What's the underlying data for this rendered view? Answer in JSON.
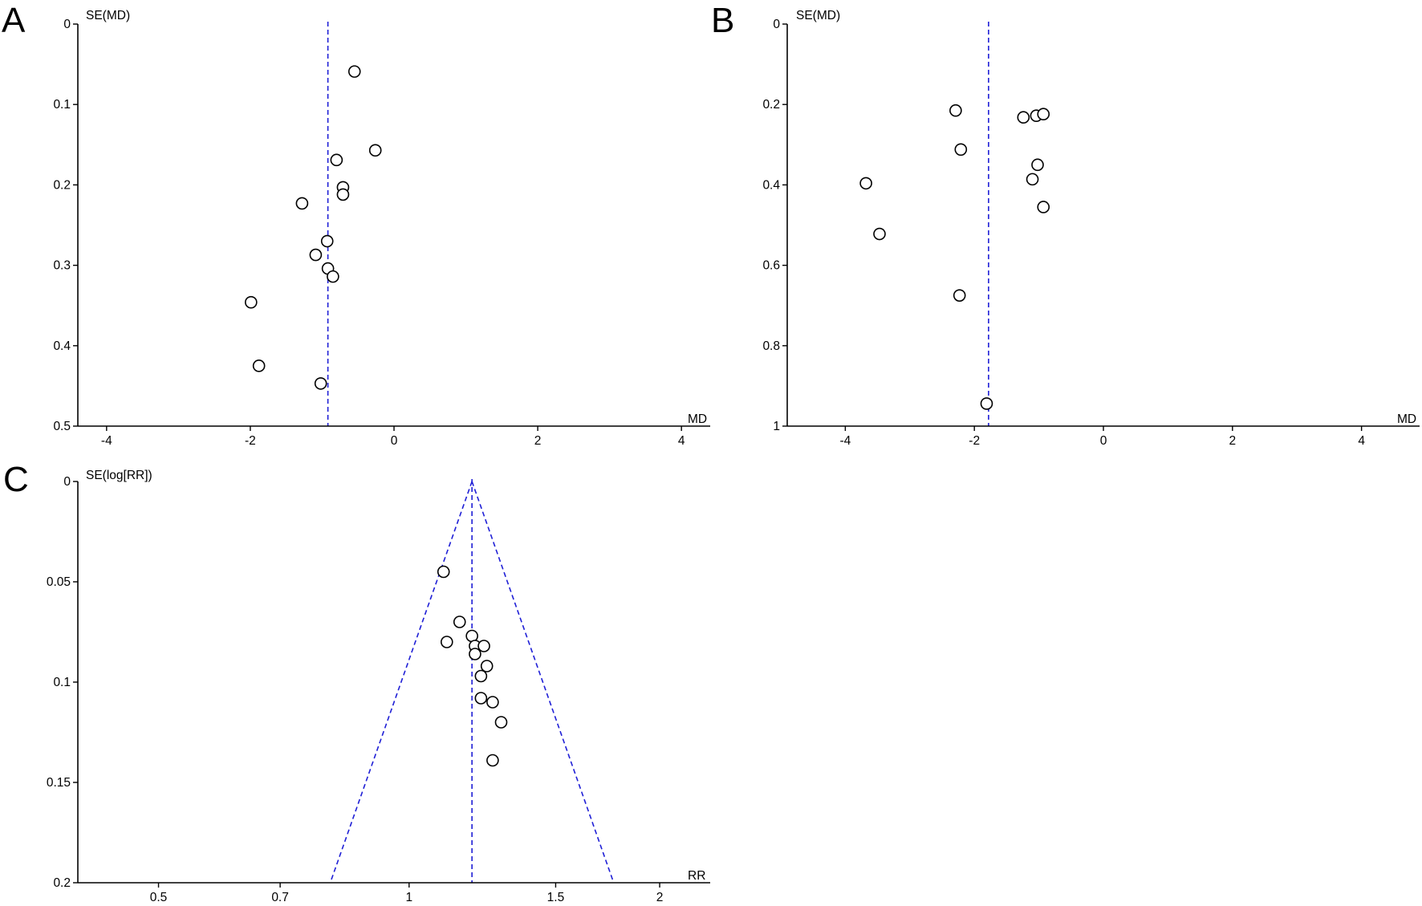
{
  "chart_data": [
    {
      "panel": "A",
      "type": "scatter",
      "xlabel": "MD",
      "ylabel": "SE(MD)",
      "xlim": [
        -4.4,
        4.4
      ],
      "ylim": [
        0,
        0.5
      ],
      "y_inverted": true,
      "xticks": [
        -4,
        -2,
        0,
        2,
        4
      ],
      "yticks": [
        0,
        0.1,
        0.2,
        0.3,
        0.4,
        0.5
      ],
      "xtick_labels": [
        "-4",
        "-2",
        "0",
        "2",
        "4"
      ],
      "ytick_labels": [
        "0",
        "0.1",
        "0.2",
        "0.3",
        "0.4",
        "0.5"
      ],
      "pooled_estimate": -0.92,
      "funnel": false,
      "points": [
        {
          "x": -0.55,
          "y": 0.059
        },
        {
          "x": -0.26,
          "y": 0.157
        },
        {
          "x": -0.8,
          "y": 0.169
        },
        {
          "x": -0.71,
          "y": 0.203
        },
        {
          "x": -0.71,
          "y": 0.212
        },
        {
          "x": -1.28,
          "y": 0.223
        },
        {
          "x": -0.93,
          "y": 0.27
        },
        {
          "x": -1.09,
          "y": 0.287
        },
        {
          "x": -0.92,
          "y": 0.304
        },
        {
          "x": -0.85,
          "y": 0.314
        },
        {
          "x": -1.99,
          "y": 0.346
        },
        {
          "x": -1.88,
          "y": 0.425
        },
        {
          "x": -1.02,
          "y": 0.447
        }
      ]
    },
    {
      "panel": "B",
      "type": "scatter",
      "xlabel": "MD",
      "ylabel": "SE(MD)",
      "xlim": [
        -4.9,
        4.9
      ],
      "ylim": [
        0,
        1
      ],
      "y_inverted": true,
      "xticks": [
        -4,
        -2,
        0,
        2,
        4
      ],
      "yticks": [
        0,
        0.2,
        0.4,
        0.6,
        0.8,
        1
      ],
      "xtick_labels": [
        "-4",
        "-2",
        "0",
        "2",
        "4"
      ],
      "ytick_labels": [
        "0",
        "0.2",
        "0.4",
        "0.6",
        "0.8",
        "1"
      ],
      "pooled_estimate": -1.78,
      "funnel": false,
      "points": [
        {
          "x": -2.29,
          "y": 0.215
        },
        {
          "x": -1.24,
          "y": 0.232
        },
        {
          "x": -1.04,
          "y": 0.228
        },
        {
          "x": -0.93,
          "y": 0.224
        },
        {
          "x": -2.21,
          "y": 0.312
        },
        {
          "x": -1.02,
          "y": 0.35
        },
        {
          "x": -1.1,
          "y": 0.386
        },
        {
          "x": -3.68,
          "y": 0.396
        },
        {
          "x": -0.93,
          "y": 0.455
        },
        {
          "x": -3.47,
          "y": 0.522
        },
        {
          "x": -2.23,
          "y": 0.675
        },
        {
          "x": -1.81,
          "y": 0.944
        }
      ]
    },
    {
      "panel": "C",
      "type": "scatter",
      "xlabel": "RR",
      "ylabel": "SE(log[RR])",
      "x_scale": "log",
      "xlim": [
        0.4,
        2.3
      ],
      "ylim": [
        0,
        0.2
      ],
      "y_inverted": true,
      "xticks": [
        0.5,
        0.7,
        1,
        1.5,
        2
      ],
      "yticks": [
        0,
        0.05,
        0.1,
        0.15,
        0.2
      ],
      "xtick_labels": [
        "0.5",
        "0.7",
        "1",
        "1.5",
        "2"
      ],
      "ytick_labels": [
        "0",
        "0.05",
        "0.1",
        "0.15",
        "0.2"
      ],
      "pooled_estimate": 1.19,
      "funnel": true,
      "points": [
        {
          "x": 1.1,
          "y": 0.045
        },
        {
          "x": 1.15,
          "y": 0.07
        },
        {
          "x": 1.11,
          "y": 0.08
        },
        {
          "x": 1.19,
          "y": 0.077
        },
        {
          "x": 1.2,
          "y": 0.082
        },
        {
          "x": 1.23,
          "y": 0.082
        },
        {
          "x": 1.2,
          "y": 0.086
        },
        {
          "x": 1.24,
          "y": 0.092
        },
        {
          "x": 1.22,
          "y": 0.097
        },
        {
          "x": 1.22,
          "y": 0.108
        },
        {
          "x": 1.26,
          "y": 0.11
        },
        {
          "x": 1.29,
          "y": 0.12
        },
        {
          "x": 1.26,
          "y": 0.139
        }
      ]
    }
  ]
}
